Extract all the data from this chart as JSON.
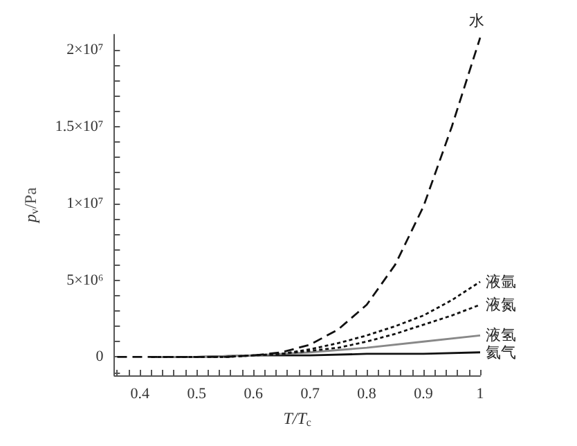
{
  "chart_data": {
    "type": "line",
    "xlabel": "T/T$_{c}$",
    "ylabel": "p$_{v}$/Pa",
    "xlim": [
      0.355,
      1
    ],
    "ylim": [
      -1200000,
      21000000
    ],
    "xticks": [
      {
        "value": 0.36,
        "label": null
      },
      {
        "value": 0.38,
        "label": null
      },
      0.4,
      {
        "value": 0.42,
        "label": null
      },
      {
        "value": 0.44,
        "label": null
      },
      {
        "value": 0.46,
        "label": null
      },
      {
        "value": 0.48,
        "label": null
      },
      0.5,
      {
        "value": 0.52,
        "label": null
      },
      {
        "value": 0.54,
        "label": null
      },
      {
        "value": 0.56,
        "label": null
      },
      {
        "value": 0.58,
        "label": null
      },
      0.6,
      {
        "value": 0.62,
        "label": null
      },
      {
        "value": 0.64,
        "label": null
      },
      {
        "value": 0.66,
        "label": null
      },
      {
        "value": 0.68,
        "label": null
      },
      0.7,
      {
        "value": 0.72,
        "label": null
      },
      {
        "value": 0.74,
        "label": null
      },
      {
        "value": 0.76,
        "label": null
      },
      {
        "value": 0.78,
        "label": null
      },
      0.8,
      {
        "value": 0.82,
        "label": null
      },
      {
        "value": 0.84,
        "label": null
      },
      {
        "value": 0.86,
        "label": null
      },
      {
        "value": 0.88,
        "label": null
      },
      0.9,
      {
        "value": 0.92,
        "label": null
      },
      {
        "value": 0.94,
        "label": null
      },
      {
        "value": 0.96,
        "label": null
      },
      {
        "value": 0.98,
        "label": null
      },
      1
    ],
    "yticks": [
      {
        "value": -1000000,
        "label": null
      },
      0,
      {
        "value": 1000000,
        "label": null
      },
      {
        "value": 2000000,
        "label": null
      },
      {
        "value": 3000000,
        "label": null
      },
      {
        "value": 4000000,
        "label": null
      },
      {
        "value": 5000000,
        "label": "5×10⁶"
      },
      {
        "value": 6000000,
        "label": null
      },
      {
        "value": 7000000,
        "label": null
      },
      {
        "value": 8000000,
        "label": null
      },
      {
        "value": 9000000,
        "label": null
      },
      {
        "value": 10000000,
        "label": "1×10⁷"
      },
      {
        "value": 11000000,
        "label": null
      },
      {
        "value": 12000000,
        "label": null
      },
      {
        "value": 13000000,
        "label": null
      },
      {
        "value": 14000000,
        "label": null
      },
      {
        "value": 15000000,
        "label": "1.5×10⁷"
      },
      {
        "value": 16000000,
        "label": null
      },
      {
        "value": 17000000,
        "label": null
      },
      {
        "value": 18000000,
        "label": null
      },
      {
        "value": 19000000,
        "label": null
      },
      {
        "value": 20000000,
        "label": "2×10⁷"
      }
    ],
    "grid": false,
    "legend": false,
    "marker": "none",
    "series": [
      {
        "name": "水",
        "color": "#111111",
        "line_style": "dashed",
        "x": [
          0.36,
          0.45,
          0.5,
          0.55,
          0.6,
          0.65,
          0.7,
          0.75,
          0.8,
          0.85,
          0.9,
          0.95,
          1
        ],
        "values": [
          0,
          0,
          0,
          0,
          100000,
          300000,
          800000,
          1800000,
          3400000,
          6000000,
          9800000,
          15000000,
          20800000
        ]
      },
      {
        "name": "液氩",
        "color": "#111111",
        "line_style": "dotted",
        "x": [
          0.42,
          0.5,
          0.55,
          0.6,
          0.65,
          0.7,
          0.75,
          0.8,
          0.85,
          0.9,
          0.95,
          1
        ],
        "values": [
          0,
          0,
          0,
          100000,
          200000,
          500000,
          900000,
          1400000,
          2000000,
          2700000,
          3700000,
          4900000
        ]
      },
      {
        "name": "液氮",
        "color": "#111111",
        "line_style": "dotted",
        "x": [
          0.42,
          0.5,
          0.55,
          0.6,
          0.65,
          0.7,
          0.75,
          0.8,
          0.85,
          0.9,
          0.95,
          1
        ],
        "values": [
          0,
          0,
          0,
          100000,
          200000,
          400000,
          600000,
          1000000,
          1500000,
          2100000,
          2700000,
          3400000
        ]
      },
      {
        "name": "液氢",
        "color": "#888888",
        "line_style": "solid",
        "x": [
          0.42,
          0.5,
          0.6,
          0.7,
          0.8,
          0.9,
          1
        ],
        "values": [
          0,
          0,
          100000,
          300000,
          600000,
          1000000,
          1400000
        ]
      },
      {
        "name": "氦气",
        "color": "#111111",
        "line_style": "solid",
        "x": [
          0.42,
          0.5,
          0.6,
          0.7,
          0.8,
          0.9,
          1
        ],
        "values": [
          0,
          0,
          100000,
          100000,
          200000,
          200000,
          300000
        ]
      }
    ]
  }
}
